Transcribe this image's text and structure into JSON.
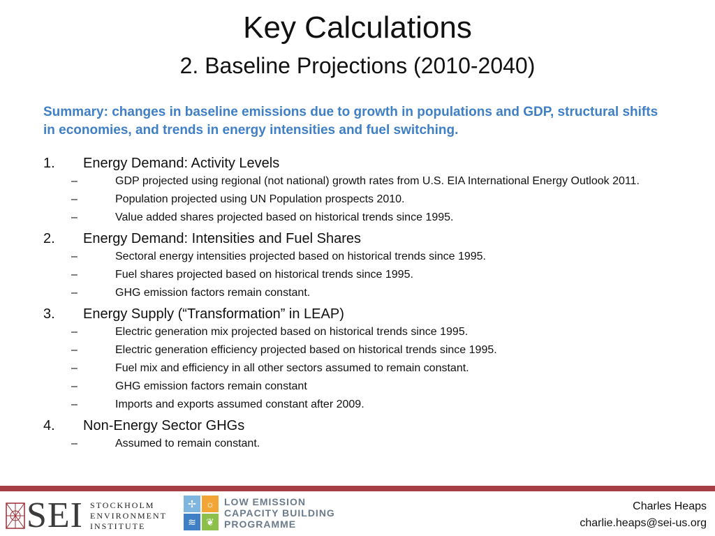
{
  "slide": {
    "title": "Key Calculations",
    "subtitle": "2. Baseline Projections (2010-2040)",
    "summary": "Summary: changes in baseline emissions due to growth in populations and GDP, structural shifts in economies, and trends in energy intensities and fuel switching.",
    "sections": [
      {
        "num": "1.",
        "heading": "Energy Demand: Activity Levels",
        "items": [
          "GDP projected using regional (not national) growth rates from U.S. EIA International Energy Outlook 2011.",
          "Population projected using UN Population prospects 2010.",
          "Value added shares projected based on historical trends since 1995."
        ]
      },
      {
        "num": "2.",
        "heading": "Energy Demand: Intensities and Fuel Shares",
        "items": [
          "Sectoral energy intensities projected based on historical trends since 1995.",
          "Fuel shares projected based on historical trends since 1995.",
          "GHG emission factors remain constant."
        ]
      },
      {
        "num": "3.",
        "heading": "Energy Supply (“Transformation” in LEAP)",
        "items": [
          "Electric generation mix projected based on historical trends since 1995.",
          "Electric generation efficiency projected based on historical trends since 1995.",
          "Fuel mix and efficiency in all other sectors assumed to remain constant.",
          "GHG emission factors remain constant",
          "Imports and exports assumed constant after 2009."
        ]
      },
      {
        "num": "4.",
        "heading": "Non-Energy Sector GHGs",
        "items": [
          "Assumed to remain constant."
        ]
      }
    ],
    "dash": "–"
  },
  "footer": {
    "sei_abbr": "SEI",
    "sei_name": [
      "STOCKHOLM",
      "ENVIRONMENT",
      "INSTITUTE"
    ],
    "lecb_name": [
      "LOW EMISSION",
      "CAPACITY BUILDING",
      "PROGRAMME"
    ],
    "author_name": "Charles Heaps",
    "author_email": "charlie.heaps@sei-us.org"
  },
  "colors": {
    "summary": "#3f7fc6",
    "footer_rule": "#a63f45",
    "lecb_cells": [
      "#7fb6df",
      "#f2a535",
      "#3f7fc6",
      "#8cc04b"
    ]
  }
}
